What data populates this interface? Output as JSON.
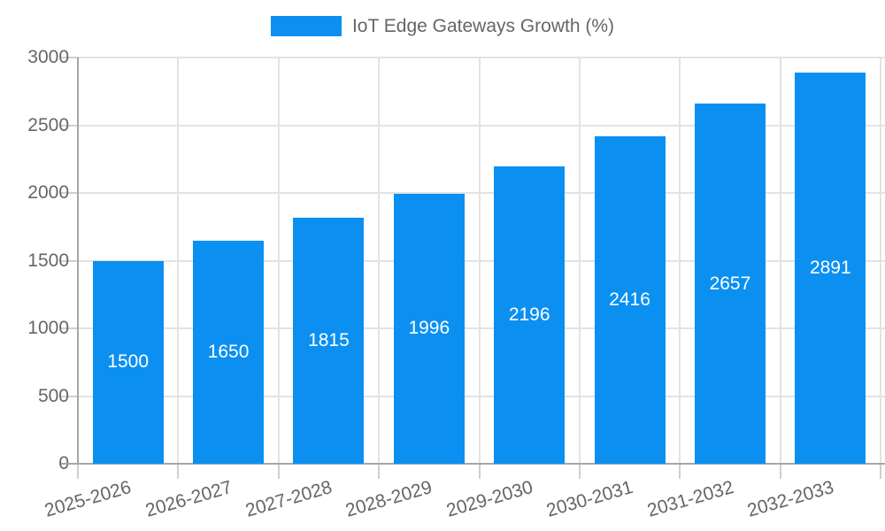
{
  "chart_data": {
    "type": "bar",
    "title": "",
    "legend": {
      "label": "IoT Edge Gateways Growth (%)",
      "position": "top-center"
    },
    "categories": [
      "2025-2026",
      "2026-2027",
      "2027-2028",
      "2028-2029",
      "2029-2030",
      "2030-2031",
      "2031-2032",
      "2032-2033"
    ],
    "series": [
      {
        "name": "IoT Edge Gateways Growth (%)",
        "values": [
          1500,
          1650,
          1815,
          1996,
          2196,
          2416,
          2657,
          2891
        ]
      }
    ],
    "value_labels_shown": true,
    "xlabel": "",
    "ylabel": "",
    "ylim": [
      0,
      3000
    ],
    "yticks": [
      0,
      500,
      1000,
      1500,
      2000,
      2500,
      3000
    ],
    "grid": true,
    "x_tick_rotation_deg": -16,
    "colors": {
      "bar": "#0b90f2",
      "value_label_text": "#ffffff",
      "tick_text": "#666666",
      "legend_text": "#666666",
      "gridline": "#e3e3e3",
      "axis_line": "#a6a6a6",
      "tick_mark": "#cfcfcf"
    }
  }
}
